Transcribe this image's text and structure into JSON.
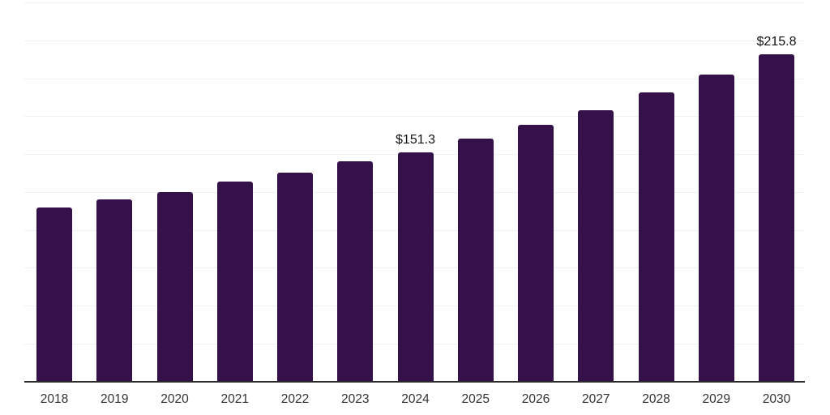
{
  "chart_data": {
    "type": "bar",
    "title": "",
    "xlabel": "",
    "ylabel": "",
    "categories": [
      "2018",
      "2019",
      "2020",
      "2021",
      "2022",
      "2023",
      "2024",
      "2025",
      "2026",
      "2027",
      "2028",
      "2029",
      "2030"
    ],
    "values": [
      114.9,
      120.1,
      125.0,
      131.6,
      137.6,
      145.0,
      151.3,
      160.2,
      169.1,
      179.0,
      190.5,
      202.6,
      215.8
    ],
    "value_labels": [
      "",
      "",
      "",
      "",
      "",
      "",
      "$151.3",
      "",
      "",
      "",
      "",
      "",
      "$215.8"
    ],
    "ylim": [
      0,
      250
    ],
    "grid_step": 25,
    "grid": "horizontal",
    "legend": "none",
    "colors": {
      "bar": "#341249",
      "gridline": "#f1f1f1",
      "axis_line": "#2b2b2b",
      "tick_text": "#333333",
      "value_text": "#111111",
      "background": "#ffffff"
    }
  }
}
